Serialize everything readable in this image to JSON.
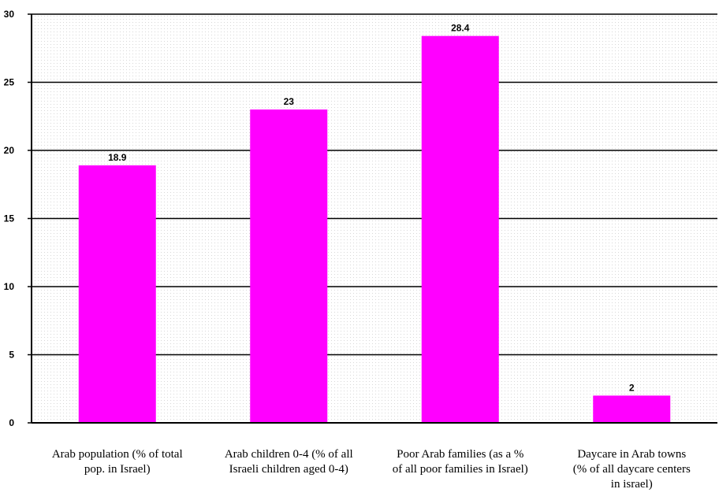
{
  "chart_data": {
    "type": "bar",
    "categories": [
      [
        "Arab population (% of total",
        "pop. in Israel)"
      ],
      [
        "Arab children 0-4 (% of all",
        "Israeli children aged 0-4)"
      ],
      [
        "Poor Arab families (as a %",
        "of all poor families in Israel)"
      ],
      [
        "Daycare in Arab towns",
        "(% of all daycare centers",
        "in israel)"
      ]
    ],
    "values": [
      18.9,
      23,
      28.4,
      2
    ],
    "data_labels": [
      "18.9",
      "23",
      "28.4",
      "2"
    ],
    "y_ticks": [
      0,
      5,
      10,
      15,
      20,
      25,
      30
    ],
    "ylim": [
      0,
      30
    ],
    "bar_color": "#ff00ff",
    "grid": true,
    "title": "",
    "xlabel": "",
    "ylabel": ""
  }
}
